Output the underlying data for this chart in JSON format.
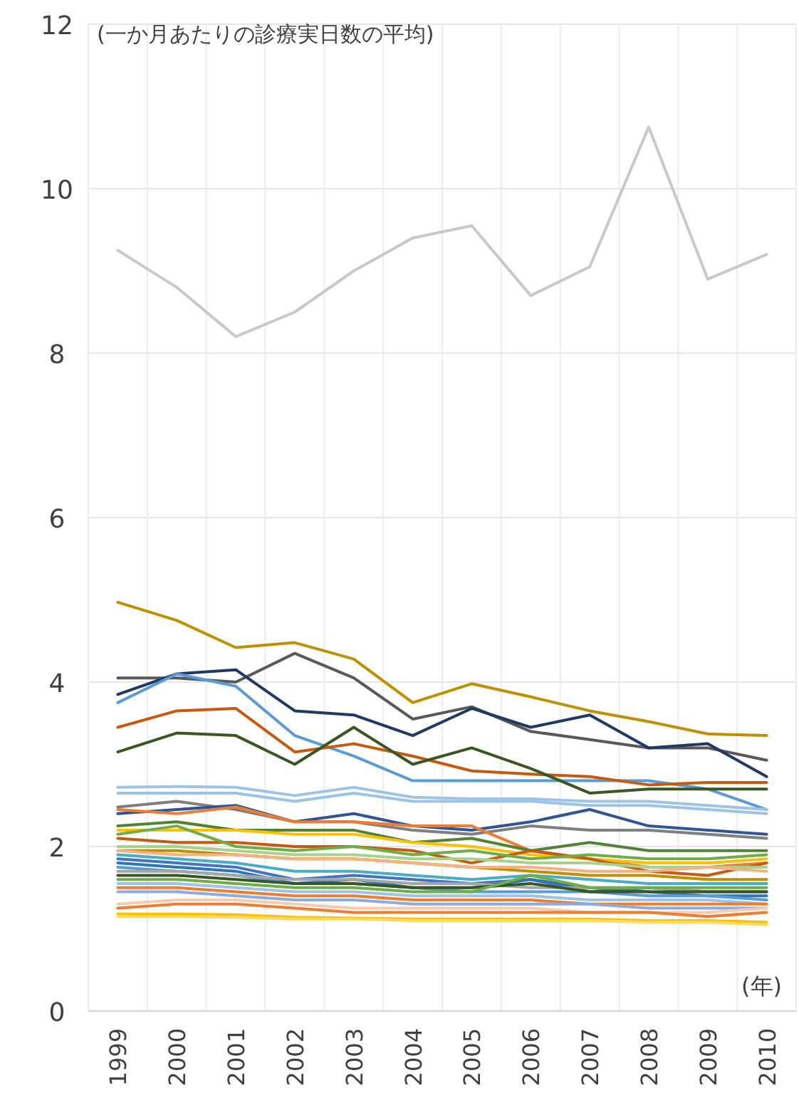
{
  "chart_data": {
    "type": "line",
    "ylabel": "(一か月あたりの診療実日数の平均)",
    "xlabel": "(年)",
    "categories": [
      "1999",
      "2000",
      "2001",
      "2002",
      "2003",
      "2004",
      "2005",
      "2006",
      "2007",
      "2008",
      "2009",
      "2010"
    ],
    "ylim": [
      0,
      12
    ],
    "yticks": [
      0,
      2,
      4,
      6,
      8,
      10,
      12
    ],
    "grid": true,
    "line_style": "solid",
    "series": [
      {
        "color": "#c9c9c9",
        "values": [
          9.25,
          8.8,
          8.2,
          8.5,
          9.0,
          9.4,
          9.55,
          8.7,
          9.05,
          10.75,
          8.9,
          9.2
        ]
      },
      {
        "color": "#bf9000",
        "values": [
          4.97,
          4.75,
          4.42,
          4.48,
          4.28,
          3.75,
          3.98,
          3.82,
          3.65,
          3.52,
          3.37,
          3.35
        ]
      },
      {
        "color": "#595959",
        "values": [
          4.05,
          4.05,
          4.0,
          4.35,
          4.05,
          3.55,
          3.7,
          3.4,
          3.3,
          3.2,
          3.2,
          3.05
        ]
      },
      {
        "color": "#203864",
        "values": [
          3.85,
          4.1,
          4.15,
          3.65,
          3.6,
          3.35,
          3.68,
          3.45,
          3.6,
          3.2,
          3.25,
          2.85
        ]
      },
      {
        "color": "#5b9bd5",
        "values": [
          3.75,
          4.1,
          3.95,
          3.35,
          3.1,
          2.8,
          2.8,
          2.8,
          2.8,
          2.8,
          2.7,
          2.45
        ]
      },
      {
        "color": "#c55a11",
        "values": [
          3.45,
          3.65,
          3.68,
          3.15,
          3.25,
          3.1,
          2.92,
          2.88,
          2.85,
          2.75,
          2.78,
          2.78
        ]
      },
      {
        "color": "#385723",
        "values": [
          3.15,
          3.38,
          3.35,
          3.0,
          3.45,
          3.0,
          3.2,
          2.95,
          2.65,
          2.7,
          2.7,
          2.7
        ]
      },
      {
        "color": "#9dc3e6",
        "values": [
          2.72,
          2.73,
          2.72,
          2.62,
          2.72,
          2.6,
          2.58,
          2.58,
          2.55,
          2.55,
          2.5,
          2.45
        ]
      },
      {
        "color": "#9dc3e6",
        "values": [
          2.65,
          2.65,
          2.65,
          2.55,
          2.65,
          2.55,
          2.55,
          2.55,
          2.5,
          2.5,
          2.45,
          2.4
        ]
      },
      {
        "color": "#7f7f7f",
        "values": [
          2.48,
          2.55,
          2.45,
          2.3,
          2.3,
          2.2,
          2.15,
          2.25,
          2.2,
          2.2,
          2.15,
          2.1
        ]
      },
      {
        "color": "#2f5597",
        "values": [
          2.4,
          2.45,
          2.5,
          2.3,
          2.4,
          2.25,
          2.2,
          2.3,
          2.45,
          2.25,
          2.2,
          2.15
        ]
      },
      {
        "color": "#ed7d31",
        "values": [
          2.45,
          2.4,
          2.48,
          2.3,
          2.3,
          2.25,
          2.25,
          1.95,
          1.85,
          1.75,
          1.75,
          1.8
        ]
      },
      {
        "color": "#548235",
        "values": [
          2.25,
          2.3,
          2.2,
          2.2,
          2.2,
          2.05,
          2.1,
          1.95,
          2.05,
          1.95,
          1.95,
          1.95
        ]
      },
      {
        "color": "#ffc000",
        "values": [
          2.2,
          2.2,
          2.2,
          2.15,
          2.15,
          2.05,
          2.0,
          1.9,
          1.85,
          1.8,
          1.8,
          1.85
        ]
      },
      {
        "color": "#c55a11",
        "values": [
          2.1,
          2.05,
          2.05,
          2.0,
          2.0,
          1.95,
          1.8,
          1.95,
          1.85,
          1.7,
          1.65,
          1.8
        ]
      },
      {
        "color": "#70ad47",
        "values": [
          2.15,
          2.25,
          2.0,
          1.95,
          2.0,
          1.9,
          1.95,
          1.85,
          1.9,
          1.85,
          1.85,
          1.9
        ]
      },
      {
        "color": "#a9d18e",
        "values": [
          2.0,
          2.0,
          1.95,
          1.9,
          1.9,
          1.85,
          1.85,
          1.8,
          1.8,
          1.75,
          1.75,
          1.75
        ]
      },
      {
        "color": "#bf9000",
        "values": [
          1.95,
          1.95,
          1.9,
          1.85,
          1.85,
          1.8,
          1.75,
          1.7,
          1.65,
          1.65,
          1.6,
          1.6
        ]
      },
      {
        "color": "#f4b183",
        "values": [
          1.95,
          1.9,
          1.9,
          1.85,
          1.85,
          1.8,
          1.75,
          1.75,
          1.7,
          1.7,
          1.75,
          1.7
        ]
      },
      {
        "color": "#4bacc6",
        "values": [
          1.9,
          1.85,
          1.8,
          1.7,
          1.7,
          1.65,
          1.6,
          1.65,
          1.6,
          1.55,
          1.55,
          1.55
        ]
      },
      {
        "color": "#4472c4",
        "values": [
          1.85,
          1.8,
          1.75,
          1.6,
          1.65,
          1.6,
          1.55,
          1.6,
          1.45,
          1.5,
          1.45,
          1.45
        ]
      },
      {
        "color": "#2e75b6",
        "values": [
          1.8,
          1.75,
          1.7,
          1.55,
          1.6,
          1.5,
          1.5,
          1.6,
          1.5,
          1.45,
          1.4,
          1.4
        ]
      },
      {
        "color": "#5b9bd5",
        "values": [
          1.75,
          1.7,
          1.65,
          1.55,
          1.55,
          1.5,
          1.45,
          1.45,
          1.45,
          1.4,
          1.4,
          1.35
        ]
      },
      {
        "color": "#a5a5a5",
        "values": [
          1.7,
          1.7,
          1.65,
          1.6,
          1.6,
          1.55,
          1.55,
          1.5,
          1.5,
          1.5,
          1.45,
          1.45
        ]
      },
      {
        "color": "#375623",
        "values": [
          1.65,
          1.65,
          1.6,
          1.55,
          1.55,
          1.5,
          1.5,
          1.55,
          1.45,
          1.45,
          1.45,
          1.45
        ]
      },
      {
        "color": "#70ad47",
        "values": [
          1.6,
          1.6,
          1.55,
          1.5,
          1.5,
          1.45,
          1.45,
          1.65,
          1.5,
          1.5,
          1.5,
          1.5
        ]
      },
      {
        "color": "#9dc3e6",
        "values": [
          1.55,
          1.55,
          1.5,
          1.45,
          1.45,
          1.4,
          1.4,
          1.4,
          1.35,
          1.35,
          1.35,
          1.3
        ]
      },
      {
        "color": "#ed7d31",
        "values": [
          1.5,
          1.5,
          1.45,
          1.4,
          1.4,
          1.35,
          1.35,
          1.35,
          1.3,
          1.3,
          1.3,
          1.3
        ]
      },
      {
        "color": "#8faadc",
        "values": [
          1.45,
          1.45,
          1.4,
          1.35,
          1.35,
          1.3,
          1.3,
          1.3,
          1.3,
          1.25,
          1.25,
          1.25
        ]
      },
      {
        "color": "#f8cbad",
        "values": [
          1.3,
          1.35,
          1.35,
          1.3,
          1.25,
          1.25,
          1.25,
          1.25,
          1.2,
          1.2,
          1.2,
          1.25
        ]
      },
      {
        "color": "#ed7d31",
        "values": [
          1.25,
          1.3,
          1.3,
          1.25,
          1.2,
          1.2,
          1.2,
          1.2,
          1.2,
          1.2,
          1.15,
          1.2
        ]
      },
      {
        "color": "#ffc000",
        "values": [
          1.18,
          1.18,
          1.17,
          1.14,
          1.13,
          1.12,
          1.12,
          1.12,
          1.12,
          1.1,
          1.1,
          1.08
        ]
      },
      {
        "color": "#ffd966",
        "values": [
          1.15,
          1.15,
          1.14,
          1.12,
          1.12,
          1.1,
          1.1,
          1.1,
          1.1,
          1.08,
          1.08,
          1.05
        ]
      }
    ]
  }
}
